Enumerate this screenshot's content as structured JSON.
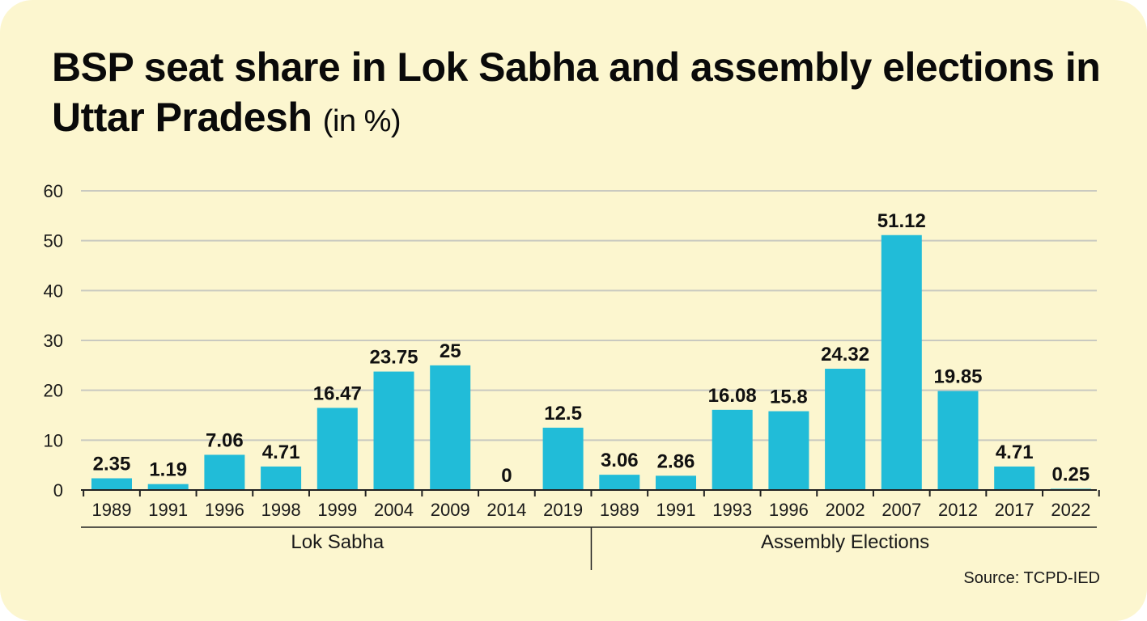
{
  "title": {
    "main": "BSP seat share in Lok Sabha and assembly elections in Uttar Pradesh",
    "unit": "(in %)"
  },
  "source": "Source: TCPD-IED",
  "colors": {
    "bar": "#21bcd8",
    "background": "#fcf6cf",
    "grid": "#c9c9c0"
  },
  "chart_data": {
    "type": "bar",
    "title": "BSP seat share in Lok Sabha and assembly elections in Uttar Pradesh",
    "ylabel": "",
    "xlabel": "",
    "ylim": [
      0,
      60
    ],
    "yticks": [
      0,
      10,
      20,
      30,
      40,
      50,
      60
    ],
    "grid": true,
    "groups": [
      {
        "name": "Lok Sabha",
        "categories": [
          "1989",
          "1991",
          "1996",
          "1998",
          "1999",
          "2004",
          "2009",
          "2014",
          "2019"
        ],
        "values": [
          2.35,
          1.19,
          7.06,
          4.71,
          16.47,
          23.75,
          25,
          0,
          12.5
        ],
        "labels": [
          "2.35",
          "1.19",
          "7.06",
          "4.71",
          "16.47",
          "23.75",
          "25",
          "0",
          "12.5"
        ]
      },
      {
        "name": "Assembly Elections",
        "categories": [
          "1989",
          "1991",
          "1993",
          "1996",
          "2002",
          "2007",
          "2012",
          "2017",
          "2022"
        ],
        "values": [
          3.06,
          2.86,
          16.08,
          15.8,
          24.32,
          51.12,
          19.85,
          4.71,
          0.25
        ],
        "labels": [
          "3.06",
          "2.86",
          "16.08",
          "15.8",
          "24.32",
          "51.12",
          "19.85",
          "4.71",
          "0.25"
        ]
      }
    ]
  }
}
